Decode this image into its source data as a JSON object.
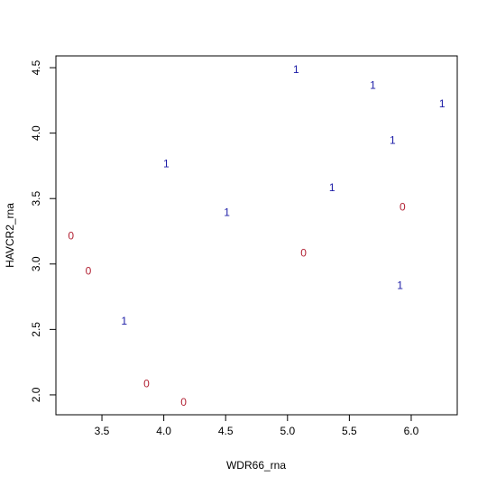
{
  "chart_data": {
    "type": "scatter",
    "xlabel": "WDR66_rna",
    "ylabel": "HAVCR2_rna",
    "xlim": [
      3.128,
      6.372
    ],
    "ylim": [
      1.848,
      4.59
    ],
    "xticks": [
      {
        "value": 3.5,
        "label": "3.5"
      },
      {
        "value": 4,
        "label": "4.0"
      },
      {
        "value": 4.5,
        "label": "4.5"
      },
      {
        "value": 5,
        "label": "5.0"
      },
      {
        "value": 5.5,
        "label": "5.5"
      },
      {
        "value": 6,
        "label": "6.0"
      }
    ],
    "yticks": [
      {
        "value": 2,
        "label": "2.0"
      },
      {
        "value": 2.5,
        "label": "2.5"
      },
      {
        "value": 3,
        "label": "3.0"
      },
      {
        "value": 3.5,
        "label": "3.5"
      },
      {
        "value": 4,
        "label": "4.0"
      },
      {
        "value": 4.5,
        "label": "4.5"
      }
    ],
    "series": [
      {
        "name": "0",
        "color": "#b22234",
        "x": [
          5.93,
          3.25,
          5.13,
          3.39,
          3.86,
          4.16
        ],
        "values": [
          3.43,
          3.21,
          3.08,
          2.94,
          2.08,
          1.94
        ]
      },
      {
        "name": "1",
        "color": "#1a1aa6",
        "x": [
          5.07,
          5.69,
          6.25,
          5.85,
          4.02,
          5.36,
          4.51,
          5.91,
          3.68
        ],
        "values": [
          4.48,
          4.36,
          4.22,
          3.94,
          3.76,
          3.58,
          3.39,
          2.83,
          2.56
        ]
      }
    ]
  }
}
